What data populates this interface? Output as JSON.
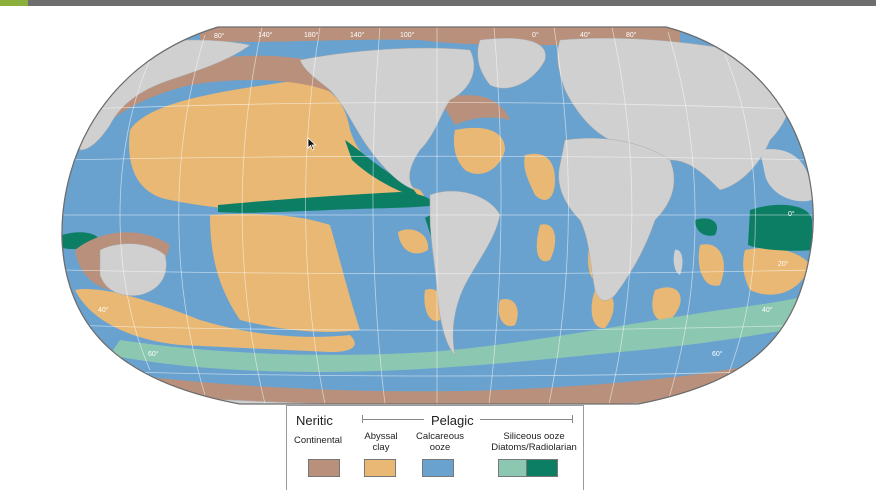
{
  "colors": {
    "ocean_base": "#6aa2cf",
    "land": "#d0d0d0",
    "continental": "#b9907b",
    "abyssal_clay": "#e8b874",
    "calcareous_ooze": "#6aa2cf",
    "diatoms": "#8cc7b2",
    "radiolarian": "#0c7e63",
    "top_bar": "#6e6e6e",
    "top_accent": "#8cae3a"
  },
  "map": {
    "longitude_labels": [
      "80°",
      "140°",
      "180°",
      "140°",
      "100°",
      "0°",
      "40°",
      "80°"
    ],
    "latitude_labels": [
      "40°",
      "60°",
      "0°",
      "20°",
      "40°",
      "60°"
    ]
  },
  "legend": {
    "neritic_title": "Neritic",
    "pelagic_title": "Pelagic",
    "items": [
      {
        "label": "Continental",
        "color": "#b9907b"
      },
      {
        "label": "Abyssal clay",
        "color": "#e8b874"
      },
      {
        "label": "Calcareous ooze",
        "color": "#6aa2cf"
      },
      {
        "label": "Siliceous ooze Diatoms/Radiolarian",
        "colors": [
          "#8cc7b2",
          "#0c7e63"
        ]
      }
    ],
    "label_lines": {
      "continental": "Continental",
      "abyssal_1": "Abyssal",
      "abyssal_2": "clay",
      "calc_1": "Calcareous",
      "calc_2": "ooze",
      "sil_1": "Siliceous ooze",
      "sil_2": "Diatoms/Radiolarian"
    }
  }
}
